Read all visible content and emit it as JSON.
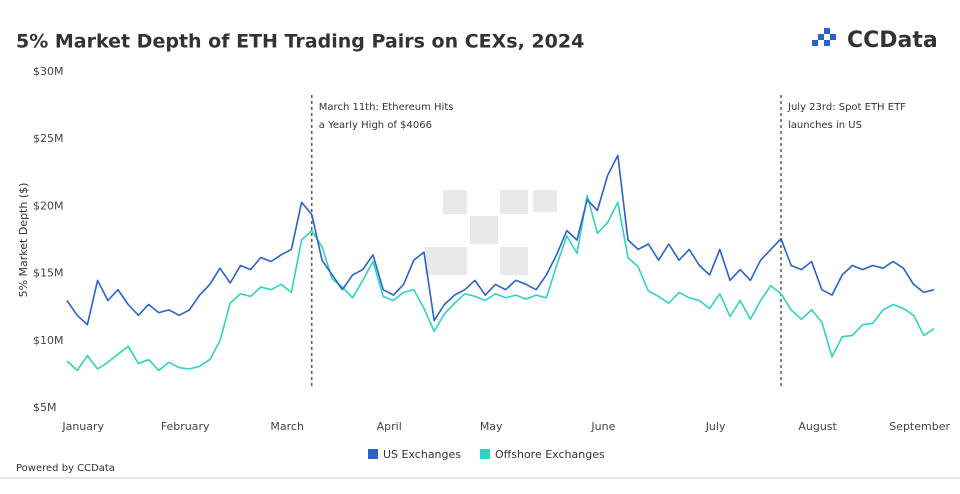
{
  "chart_data": {
    "type": "line",
    "title": "5% Market Depth of ETH Trading Pairs on CEXs, 2024",
    "brand": "CCData",
    "footer": "Powered by CCData",
    "y_label": "5% Market Depth ($)",
    "annotations": [
      {
        "lines": [
          "March 11th: Ethereum Hits",
          "a Yearly High of $4066"
        ]
      },
      {
        "lines": [
          "July 23rd: Spot ETH ETF",
          "launches in US"
        ]
      }
    ],
    "categories": [
      null,
      "January",
      null,
      null,
      null,
      null,
      null,
      null,
      null,
      null,
      null,
      "February",
      null,
      null,
      null,
      null,
      null,
      null,
      null,
      null,
      null,
      "March",
      null,
      null,
      null,
      null,
      null,
      null,
      null,
      null,
      null,
      "April",
      null,
      null,
      null,
      null,
      null,
      null,
      null,
      null,
      null,
      "May",
      null,
      null,
      null,
      null,
      null,
      null,
      null,
      null,
      null,
      null,
      "June",
      null,
      null,
      null,
      null,
      null,
      null,
      null,
      null,
      null,
      null,
      "July",
      null,
      null,
      null,
      null,
      null,
      null,
      null,
      null,
      null,
      "August",
      null,
      null,
      null,
      null,
      null,
      null,
      null,
      null,
      null,
      "September",
      null,
      null
    ],
    "series": [
      {
        "name": "US Exchanges",
        "color": "#2a62c9",
        "values": [
          13.0,
          11.9,
          11.2,
          14.5,
          13.0,
          13.8,
          12.7,
          11.9,
          12.7,
          12.1,
          12.3,
          11.9,
          12.3,
          13.4,
          14.2,
          15.4,
          14.3,
          15.6,
          15.3,
          16.2,
          15.9,
          16.4,
          16.8,
          20.3,
          19.4,
          16.0,
          14.9,
          13.8,
          14.9,
          15.3,
          16.4,
          13.8,
          13.4,
          14.2,
          16.0,
          16.6,
          11.5,
          12.7,
          13.4,
          13.8,
          14.5,
          13.4,
          14.2,
          13.8,
          14.5,
          14.2,
          13.8,
          14.9,
          16.4,
          18.2,
          17.5,
          20.5,
          19.7,
          22.3,
          23.8,
          17.5,
          16.8,
          17.2,
          16.0,
          17.2,
          16.0,
          16.8,
          15.6,
          14.9,
          16.8,
          14.5,
          15.3,
          14.5,
          16.0,
          16.8,
          17.6,
          15.6,
          15.3,
          15.9,
          13.8,
          13.4,
          14.9,
          15.6,
          15.3,
          15.6,
          15.4,
          15.9,
          15.4,
          14.2,
          13.6,
          13.8
        ]
      },
      {
        "name": "Offshore Exchanges",
        "color": "#2ed3c1",
        "values": [
          8.5,
          7.8,
          8.9,
          7.9,
          8.4,
          9.0,
          9.6,
          8.3,
          8.6,
          7.8,
          8.4,
          8.0,
          7.9,
          8.1,
          8.6,
          10.0,
          12.8,
          13.5,
          13.3,
          14.0,
          13.8,
          14.2,
          13.6,
          17.5,
          18.2,
          17.0,
          14.6,
          14.0,
          13.2,
          14.5,
          15.9,
          13.3,
          13.0,
          13.6,
          13.8,
          12.4,
          10.7,
          12.0,
          12.8,
          13.5,
          13.3,
          13.0,
          13.5,
          13.2,
          13.4,
          13.1,
          13.4,
          13.2,
          15.6,
          17.8,
          16.5,
          20.8,
          18.0,
          18.8,
          20.3,
          16.2,
          15.5,
          13.7,
          13.3,
          12.8,
          13.6,
          13.2,
          13.0,
          12.4,
          13.5,
          11.8,
          13.0,
          11.6,
          13.0,
          14.1,
          13.5,
          12.3,
          11.6,
          12.3,
          11.4,
          8.8,
          10.3,
          10.4,
          11.2,
          11.3,
          12.3,
          12.7,
          12.4,
          11.9,
          10.4,
          10.9
        ]
      }
    ],
    "ylim": [
      5,
      30
    ],
    "yticks": [
      {
        "value": 5,
        "label": "$5M"
      },
      {
        "value": 10,
        "label": "$10M"
      },
      {
        "value": 15,
        "label": "$15M"
      },
      {
        "value": 20,
        "label": "$20M"
      },
      {
        "value": 25,
        "label": "$25M"
      },
      {
        "value": 30,
        "label": "$30M"
      }
    ],
    "grid": false,
    "legend": "bottom"
  }
}
